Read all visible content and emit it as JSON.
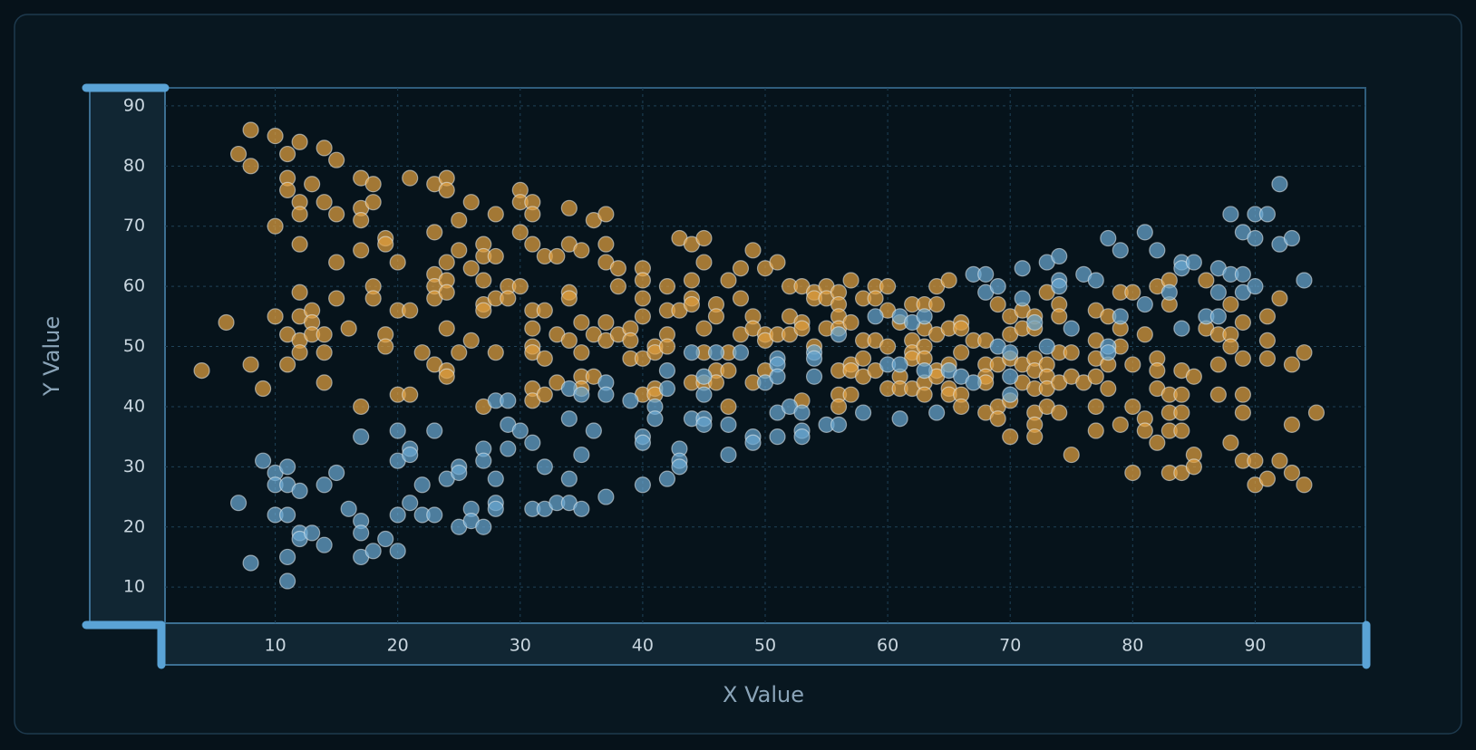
{
  "chart_data": {
    "type": "scatter",
    "x_label": "X Value",
    "y_label": "Y Value",
    "xlim": [
      1,
      99
    ],
    "ylim": [
      4,
      93
    ],
    "xticks": [
      10,
      20,
      30,
      40,
      50,
      60,
      70,
      80,
      90
    ],
    "yticks": [
      10,
      20,
      30,
      40,
      50,
      60,
      70,
      80,
      90
    ],
    "grid": true,
    "series": [
      {
        "color": "#e0a040",
        "x": [
          4,
          6,
          7,
          8,
          8,
          8,
          9,
          10,
          10,
          10,
          11,
          11,
          11,
          11,
          11,
          12,
          12,
          12,
          12,
          12,
          12,
          12,
          12,
          13,
          13,
          13,
          13,
          14,
          14,
          14,
          14,
          14,
          15,
          15,
          15,
          15,
          16,
          17,
          17,
          17,
          17,
          17,
          18,
          18,
          18,
          18,
          19,
          19,
          19,
          19,
          20,
          20,
          20,
          21,
          21,
          21,
          22,
          23,
          23,
          23,
          23,
          23,
          23,
          24,
          24,
          24,
          24,
          24,
          24,
          24,
          24,
          25,
          25,
          25,
          26,
          26,
          26,
          27,
          27,
          27,
          27,
          27,
          27,
          28,
          28,
          28,
          28,
          29,
          29,
          30,
          30,
          30,
          30,
          31,
          31,
          31,
          31,
          31,
          31,
          31,
          31,
          31,
          32,
          32,
          32,
          32,
          33,
          33,
          33,
          34,
          34,
          34,
          34,
          34,
          35,
          35,
          35,
          35,
          35,
          36,
          36,
          36,
          37,
          37,
          37,
          37,
          37,
          38,
          38,
          38,
          39,
          39,
          39,
          40,
          40,
          40,
          40,
          40,
          40,
          41,
          41,
          41,
          41,
          42,
          42,
          42,
          42,
          43,
          43,
          44,
          44,
          44,
          44,
          44,
          45,
          45,
          45,
          45,
          45,
          46,
          46,
          46,
          46,
          47,
          47,
          47,
          47,
          48,
          48,
          48,
          49,
          49,
          49,
          49,
          50,
          50,
          50,
          50,
          51,
          51,
          52,
          52,
          52,
          53,
          53,
          53,
          53,
          54,
          54,
          54,
          55,
          55,
          55,
          56,
          56,
          56,
          56,
          56,
          56,
          56,
          57,
          57,
          57,
          57,
          57,
          58,
          58,
          58,
          58,
          59,
          59,
          59,
          59,
          60,
          60,
          60,
          60,
          61,
          61,
          61,
          62,
          62,
          62,
          62,
          62,
          63,
          63,
          63,
          63,
          63,
          63,
          64,
          64,
          64,
          64,
          64,
          65,
          65,
          65,
          65,
          65,
          66,
          66,
          66,
          66,
          66,
          67,
          68,
          68,
          68,
          68,
          68,
          69,
          69,
          69,
          69,
          70,
          70,
          70,
          70,
          70,
          71,
          71,
          71,
          71,
          72,
          72,
          72,
          72,
          72,
          72,
          72,
          72,
          73,
          73,
          73,
          73,
          73,
          74,
          74,
          74,
          74,
          74,
          75,
          75,
          75,
          76,
          77,
          77,
          77,
          77,
          77,
          77,
          78,
          78,
          78,
          79,
          79,
          79,
          79,
          80,
          80,
          80,
          80,
          81,
          81,
          81,
          82,
          82,
          82,
          82,
          82,
          83,
          83,
          83,
          83,
          83,
          83,
          84,
          84,
          84,
          84,
          84,
          85,
          85,
          85,
          86,
          86,
          87,
          87,
          87,
          88,
          88,
          88,
          88,
          89,
          89,
          89,
          89,
          89,
          90,
          90,
          91,
          91,
          91,
          91,
          92,
          92,
          93,
          93,
          93,
          94,
          94,
          95
        ],
        "values": [
          46,
          54,
          82,
          86,
          80,
          47,
          43,
          85,
          70,
          55,
          82,
          78,
          76,
          52,
          47,
          84,
          74,
          72,
          67,
          59,
          55,
          51,
          49,
          77,
          56,
          54,
          52,
          83,
          74,
          52,
          49,
          44,
          81,
          72,
          64,
          58,
          53,
          78,
          73,
          71,
          66,
          40,
          77,
          74,
          60,
          58,
          68,
          67,
          52,
          50,
          64,
          56,
          42,
          78,
          56,
          42,
          49,
          77,
          69,
          62,
          60,
          58,
          47,
          78,
          76,
          64,
          61,
          59,
          53,
          46,
          45,
          71,
          66,
          49,
          74,
          63,
          51,
          67,
          65,
          61,
          57,
          56,
          40,
          72,
          65,
          58,
          49,
          60,
          58,
          76,
          74,
          69,
          60,
          74,
          72,
          67,
          56,
          53,
          50,
          49,
          43,
          41,
          65,
          56,
          48,
          42,
          65,
          52,
          44,
          73,
          67,
          59,
          58,
          51,
          66,
          54,
          49,
          45,
          43,
          71,
          52,
          45,
          72,
          67,
          64,
          54,
          51,
          63,
          60,
          52,
          53,
          51,
          48,
          63,
          61,
          58,
          55,
          48,
          42,
          50,
          49,
          43,
          42,
          60,
          56,
          52,
          50,
          68,
          56,
          67,
          61,
          58,
          57,
          44,
          68,
          64,
          53,
          49,
          44,
          57,
          55,
          46,
          44,
          61,
          49,
          46,
          40,
          63,
          58,
          52,
          66,
          55,
          53,
          44,
          63,
          52,
          51,
          46,
          64,
          52,
          60,
          55,
          52,
          60,
          54,
          53,
          41,
          59,
          58,
          50,
          60,
          58,
          53,
          59,
          57,
          55,
          53,
          46,
          42,
          40,
          61,
          54,
          47,
          46,
          42,
          58,
          51,
          48,
          45,
          60,
          58,
          51,
          46,
          60,
          56,
          50,
          43,
          54,
          45,
          43,
          57,
          51,
          49,
          48,
          43,
          57,
          53,
          50,
          48,
          44,
          42,
          60,
          57,
          52,
          46,
          45,
          61,
          53,
          47,
          43,
          42,
          54,
          53,
          49,
          42,
          40,
          51,
          51,
          47,
          45,
          44,
          39,
          57,
          47,
          40,
          38,
          55,
          52,
          48,
          41,
          35,
          56,
          53,
          47,
          44,
          55,
          53,
          48,
          46,
          43,
          39,
          37,
          35,
          59,
          47,
          45,
          43,
          40,
          57,
          55,
          49,
          44,
          39,
          49,
          45,
          32,
          44,
          56,
          51,
          48,
          45,
          40,
          36,
          55,
          47,
          43,
          59,
          53,
          50,
          37,
          59,
          47,
          40,
          29,
          52,
          38,
          36,
          60,
          48,
          46,
          43,
          34,
          61,
          57,
          42,
          39,
          36,
          29,
          46,
          42,
          39,
          36,
          29,
          45,
          32,
          30,
          61,
          53,
          52,
          47,
          42,
          57,
          52,
          50,
          34,
          54,
          48,
          42,
          39,
          31,
          31,
          27,
          55,
          51,
          48,
          28,
          58,
          31,
          47,
          37,
          29,
          49,
          27,
          39
        ]
      },
      {
        "color": "#6aa6d0",
        "x": [
          7,
          8,
          9,
          10,
          10,
          10,
          11,
          11,
          11,
          11,
          11,
          12,
          12,
          12,
          13,
          14,
          14,
          15,
          16,
          17,
          17,
          17,
          17,
          18,
          19,
          20,
          20,
          20,
          20,
          21,
          21,
          21,
          22,
          22,
          23,
          23,
          24,
          25,
          25,
          25,
          26,
          26,
          27,
          27,
          27,
          28,
          28,
          28,
          28,
          29,
          29,
          29,
          30,
          31,
          31,
          32,
          32,
          33,
          34,
          34,
          34,
          34,
          35,
          35,
          35,
          36,
          37,
          37,
          37,
          39,
          40,
          40,
          40,
          41,
          41,
          42,
          42,
          42,
          43,
          43,
          43,
          44,
          44,
          45,
          45,
          45,
          45,
          46,
          47,
          47,
          48,
          49,
          49,
          50,
          51,
          51,
          51,
          51,
          51,
          52,
          53,
          53,
          53,
          54,
          54,
          54,
          55,
          56,
          56,
          58,
          59,
          60,
          61,
          61,
          61,
          62,
          63,
          63,
          64,
          65,
          66,
          67,
          67,
          68,
          68,
          69,
          69,
          70,
          70,
          70,
          71,
          71,
          72,
          73,
          73,
          74,
          74,
          74,
          75,
          76,
          77,
          78,
          78,
          78,
          79,
          79,
          81,
          81,
          82,
          83,
          84,
          84,
          84,
          85,
          86,
          87,
          87,
          87,
          88,
          88,
          89,
          89,
          89,
          90,
          90,
          90,
          91,
          92,
          92,
          93,
          94
        ],
        "values": [
          24,
          14,
          31,
          29,
          27,
          22,
          30,
          27,
          22,
          15,
          11,
          26,
          19,
          18,
          19,
          27,
          17,
          29,
          23,
          35,
          21,
          19,
          15,
          16,
          18,
          36,
          31,
          22,
          16,
          33,
          32,
          24,
          27,
          22,
          36,
          22,
          28,
          30,
          29,
          20,
          23,
          21,
          33,
          31,
          20,
          41,
          28,
          24,
          23,
          37,
          33,
          41,
          36,
          34,
          23,
          30,
          23,
          24,
          43,
          38,
          28,
          24,
          42,
          32,
          23,
          36,
          44,
          42,
          25,
          41,
          35,
          34,
          27,
          40,
          38,
          46,
          43,
          28,
          33,
          31,
          30,
          49,
          38,
          45,
          42,
          38,
          37,
          49,
          37,
          32,
          49,
          35,
          34,
          44,
          48,
          47,
          45,
          39,
          35,
          40,
          39,
          36,
          35,
          49,
          48,
          45,
          37,
          52,
          37,
          39,
          55,
          47,
          55,
          47,
          38,
          54,
          55,
          46,
          39,
          46,
          45,
          62,
          44,
          62,
          59,
          60,
          50,
          49,
          45,
          42,
          63,
          58,
          54,
          64,
          50,
          65,
          61,
          60,
          53,
          62,
          61,
          68,
          50,
          49,
          66,
          55,
          69,
          57,
          66,
          59,
          64,
          63,
          53,
          64,
          55,
          63,
          59,
          55,
          72,
          62,
          69,
          62,
          59,
          72,
          68,
          60,
          72,
          77,
          67,
          68,
          61
        ]
      }
    ]
  }
}
